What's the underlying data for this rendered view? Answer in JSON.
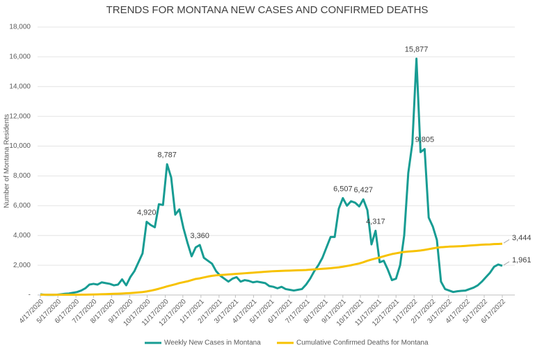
{
  "chart_data": {
    "type": "line",
    "title": "TRENDS FOR MONTANA NEW CASES AND CONFIRMED DEATHS",
    "y_label": "Number of Montana Residents",
    "x": [
      "4/17/2020",
      "4/24/2020",
      "5/1/2020",
      "5/8/2020",
      "5/15/2020",
      "5/22/2020",
      "5/29/2020",
      "6/5/2020",
      "6/12/2020",
      "6/19/2020",
      "6/26/2020",
      "7/3/2020",
      "7/10/2020",
      "7/17/2020",
      "7/24/2020",
      "7/31/2020",
      "8/7/2020",
      "8/14/2020",
      "8/21/2020",
      "8/28/2020",
      "9/4/2020",
      "9/11/2020",
      "9/18/2020",
      "9/25/2020",
      "10/2/2020",
      "10/9/2020",
      "10/16/2020",
      "10/23/2020",
      "10/30/2020",
      "11/6/2020",
      "11/13/2020",
      "11/20/2020",
      "11/27/2020",
      "12/4/2020",
      "12/11/2020",
      "12/18/2020",
      "12/25/2020",
      "1/1/2021",
      "1/8/2021",
      "1/15/2021",
      "1/22/2021",
      "1/29/2021",
      "2/5/2021",
      "2/12/2021",
      "2/19/2021",
      "2/26/2021",
      "3/5/2021",
      "3/12/2021",
      "3/19/2021",
      "3/26/2021",
      "4/2/2021",
      "4/9/2021",
      "4/16/2021",
      "4/23/2021",
      "4/30/2021",
      "5/7/2021",
      "5/14/2021",
      "5/21/2021",
      "5/28/2021",
      "6/4/2021",
      "6/11/2021",
      "6/18/2021",
      "6/25/2021",
      "7/2/2021",
      "7/9/2021",
      "7/16/2021",
      "7/23/2021",
      "7/30/2021",
      "8/6/2021",
      "8/13/2021",
      "8/20/2021",
      "8/27/2021",
      "9/3/2021",
      "9/10/2021",
      "9/17/2021",
      "9/24/2021",
      "10/1/2021",
      "10/8/2021",
      "10/15/2021",
      "10/22/2021",
      "10/29/2021",
      "11/5/2021",
      "11/12/2021",
      "11/19/2021",
      "11/26/2021",
      "12/3/2021",
      "12/10/2021",
      "12/17/2021",
      "12/24/2021",
      "12/31/2021",
      "1/7/2022",
      "1/14/2022",
      "1/21/2022",
      "1/28/2022",
      "2/4/2022",
      "2/11/2022",
      "2/18/2022",
      "2/25/2022",
      "3/4/2022",
      "3/11/2022",
      "3/18/2022",
      "3/25/2022",
      "4/1/2022",
      "4/8/2022",
      "4/15/2022",
      "4/22/2022",
      "4/29/2022",
      "5/6/2022",
      "5/13/2022",
      "5/20/2022",
      "5/27/2022",
      "6/3/2022",
      "6/10/2022",
      "6/17/2022"
    ],
    "xlim": [
      "4/17/2020",
      "6/17/2022"
    ],
    "xticks": [
      "4/17/2020",
      "5/17/2020",
      "6/17/2020",
      "7/17/2020",
      "8/17/2020",
      "9/17/2020",
      "10/17/2020",
      "11/17/2020",
      "12/17/2020",
      "1/17/2021",
      "2/17/2021",
      "3/17/2021",
      "4/17/2021",
      "5/17/2021",
      "6/17/2021",
      "7/17/2021",
      "8/17/2021",
      "9/17/2021",
      "10/17/2021",
      "11/17/2021",
      "12/17/2021",
      "1/17/2022",
      "2/17/2022",
      "3/17/2022",
      "4/17/2022",
      "5/17/2022",
      "6/17/2022"
    ],
    "ylim": [
      0,
      18000
    ],
    "yticks": [
      {
        "value": 0,
        "label": "-"
      },
      {
        "value": 2000,
        "label": "2,000"
      },
      {
        "value": 4000,
        "label": "4,000"
      },
      {
        "value": 6000,
        "label": "6,000"
      },
      {
        "value": 8000,
        "label": "8,000"
      },
      {
        "value": 10000,
        "label": "10,000"
      },
      {
        "value": 12000,
        "label": "12,000"
      },
      {
        "value": 14000,
        "label": "14,000"
      },
      {
        "value": 16000,
        "label": "16,000"
      },
      {
        "value": 18000,
        "label": "18,000"
      }
    ],
    "grid": true,
    "legend": "bottom",
    "series": [
      {
        "name": "Weekly New Cases in Montana",
        "color": "#179c93",
        "values": [
          50,
          20,
          10,
          10,
          20,
          50,
          80,
          100,
          150,
          200,
          300,
          450,
          700,
          750,
          700,
          850,
          800,
          750,
          650,
          700,
          1050,
          650,
          1200,
          1600,
          2200,
          2800,
          4920,
          4700,
          4550,
          6100,
          6050,
          8787,
          7900,
          5400,
          5750,
          4500,
          3500,
          2600,
          3200,
          3360,
          2500,
          2300,
          2100,
          1600,
          1300,
          1100,
          900,
          1100,
          1200,
          900,
          1000,
          950,
          850,
          900,
          850,
          800,
          600,
          550,
          450,
          550,
          400,
          350,
          300,
          350,
          400,
          700,
          1100,
          1600,
          2000,
          2500,
          3200,
          3900,
          3900,
          5800,
          6507,
          6000,
          6300,
          6200,
          5950,
          6427,
          5700,
          3400,
          4317,
          2200,
          2300,
          1700,
          1000,
          1100,
          2000,
          4000,
          8200,
          10200,
          15877,
          9600,
          9805,
          5200,
          4600,
          3700,
          900,
          400,
          300,
          200,
          250,
          280,
          300,
          400,
          500,
          650,
          900,
          1200,
          1500,
          1900,
          2050,
          1961
        ],
        "value_labels": [
          null,
          null,
          null,
          null,
          null,
          null,
          null,
          null,
          null,
          null,
          null,
          null,
          null,
          null,
          null,
          null,
          null,
          null,
          null,
          null,
          null,
          null,
          null,
          null,
          null,
          null,
          "4,920",
          null,
          null,
          null,
          null,
          "8,787",
          null,
          null,
          null,
          null,
          null,
          null,
          null,
          "3,360",
          null,
          null,
          null,
          null,
          null,
          null,
          null,
          null,
          null,
          null,
          null,
          null,
          null,
          null,
          null,
          null,
          null,
          null,
          null,
          null,
          null,
          null,
          null,
          null,
          null,
          null,
          null,
          null,
          null,
          null,
          null,
          null,
          null,
          null,
          "6,507",
          null,
          null,
          null,
          null,
          "6,427",
          null,
          null,
          "4,317",
          null,
          null,
          null,
          null,
          null,
          null,
          null,
          null,
          null,
          "15,877",
          null,
          "9,805",
          null,
          null,
          null,
          null,
          null,
          null,
          null,
          null,
          null,
          null,
          null,
          null,
          null,
          null,
          null,
          null,
          null,
          null,
          "1,961"
        ]
      },
      {
        "name": "Cumulative Confirmed Deaths for Montana",
        "color": "#f7c200",
        "values": [
          16,
          16,
          16,
          17,
          17,
          17,
          18,
          19,
          20,
          20,
          22,
          24,
          28,
          32,
          40,
          50,
          60,
          70,
          80,
          90,
          100,
          115,
          130,
          150,
          175,
          200,
          240,
          290,
          350,
          420,
          500,
          580,
          650,
          720,
          800,
          860,
          920,
          1000,
          1080,
          1120,
          1180,
          1240,
          1290,
          1320,
          1340,
          1360,
          1380,
          1400,
          1420,
          1440,
          1460,
          1480,
          1500,
          1520,
          1540,
          1560,
          1580,
          1600,
          1610,
          1620,
          1630,
          1640,
          1650,
          1660,
          1670,
          1680,
          1700,
          1720,
          1740,
          1760,
          1780,
          1800,
          1830,
          1860,
          1900,
          1950,
          2000,
          2060,
          2120,
          2200,
          2300,
          2380,
          2450,
          2520,
          2600,
          2680,
          2750,
          2800,
          2850,
          2890,
          2920,
          2940,
          2960,
          2990,
          3030,
          3080,
          3130,
          3180,
          3210,
          3230,
          3250,
          3260,
          3270,
          3280,
          3300,
          3320,
          3340,
          3360,
          3380,
          3390,
          3400,
          3420,
          3430,
          3444
        ],
        "value_labels": [
          null,
          null,
          null,
          null,
          null,
          null,
          null,
          null,
          null,
          null,
          null,
          null,
          null,
          null,
          null,
          null,
          null,
          null,
          null,
          null,
          null,
          null,
          null,
          null,
          null,
          null,
          null,
          null,
          null,
          null,
          null,
          null,
          null,
          null,
          null,
          null,
          null,
          null,
          null,
          null,
          null,
          null,
          null,
          null,
          null,
          null,
          null,
          null,
          null,
          null,
          null,
          null,
          null,
          null,
          null,
          null,
          null,
          null,
          null,
          null,
          null,
          null,
          null,
          null,
          null,
          null,
          null,
          null,
          null,
          null,
          null,
          null,
          null,
          null,
          null,
          null,
          null,
          null,
          null,
          null,
          null,
          null,
          null,
          null,
          null,
          null,
          null,
          null,
          null,
          null,
          null,
          null,
          null,
          null,
          null,
          null,
          null,
          null,
          null,
          null,
          null,
          null,
          null,
          null,
          null,
          null,
          null,
          null,
          null,
          null,
          null,
          null,
          null,
          "3,444"
        ]
      }
    ]
  }
}
